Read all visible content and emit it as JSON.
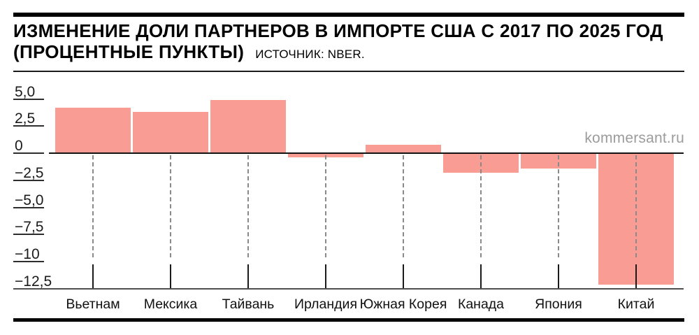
{
  "header": {
    "title_line1": "ИЗМЕНЕНИЕ ДОЛИ ПАРТНЕРОВ В ИМПОРТЕ США С 2017 ПО 2025 ГОД",
    "title_line2": "(ПРОЦЕНТНЫЕ ПУНКТЫ)",
    "source": "ИСТОЧНИК: NBER."
  },
  "watermark": "kommersant.ru",
  "colors": {
    "bar": "#F99C94",
    "zero_line": "#141414",
    "baseline": "#4f4f4f",
    "tick": "#2e2e2e",
    "dashed_grid": "#8a8a8a",
    "watermark": "#9c9c9c",
    "frame": "#000000"
  },
  "chart_data": {
    "type": "bar",
    "title": "ИЗМЕНЕНИЕ ДОЛИ ПАРТНЕРОВ В ИМПОРТЕ США С 2017 ПО 2025 ГОД (ПРОЦЕНТНЫЕ ПУНКТЫ)",
    "source": "ИСТОЧНИК: NBER.",
    "categories": [
      "Вьетнам",
      "Мексика",
      "Тайвань",
      "Ирландия",
      "Южная Корея",
      "Канада",
      "Япония",
      "Китай"
    ],
    "values": [
      4.2,
      3.8,
      4.9,
      -0.4,
      0.8,
      -1.8,
      -1.4,
      -12.1
    ],
    "y_tick_labels": [
      "5,0",
      "2,5",
      "0",
      "−2,5",
      "−5,0",
      "−7,5",
      "−10",
      "−12,5"
    ],
    "y_tick_values": [
      5,
      2.5,
      0,
      -2.5,
      -5,
      -7.5,
      -10,
      -12.5
    ],
    "ylim": [
      -12.5,
      5.0
    ],
    "xlabel": "",
    "ylabel": "",
    "grid": "dashed vertical per category",
    "legend": "none",
    "bar_color": "#F99C94"
  }
}
